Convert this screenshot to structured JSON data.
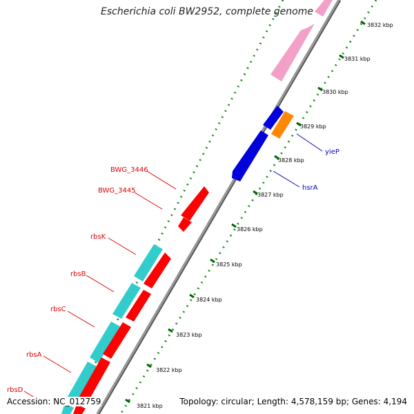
{
  "title": "Escherichia coli BW2952, complete genome",
  "footer": {
    "accession": "Accession: NC_012759",
    "summary": "Topology: circular; Length: 4,578,159 bp; Genes: 4,194"
  },
  "kbp_ticks": [
    "3832 kbp",
    "3831 kbp",
    "3830 kbp",
    "3829 kbp",
    "3828 kbp",
    "3827 kbp",
    "3826 kbp",
    "3825 kbp",
    "3824 kbp",
    "3823 kbp",
    "3822 kbp",
    "3821 kbp"
  ],
  "gene_labels": {
    "bwg_3446": "BWG_3446",
    "bwg_3445": "BWG_3445",
    "rbsK": "rbsK",
    "rbsB": "rbsB",
    "rbsC": "rbsC",
    "rbsA": "rbsA",
    "rbsD": "rbsD",
    "yieP": "yieP",
    "hsrA": "hsrA"
  },
  "colors": {
    "red": "#ff0000",
    "cyan": "#33cccc",
    "pink": "#f2a0c8",
    "blue": "#0000dd",
    "orange": "#ff8800",
    "backbone": "#888888",
    "dotted_track": "#228B22",
    "label_red": "#dd0000",
    "label_blue": "#0000cc"
  }
}
